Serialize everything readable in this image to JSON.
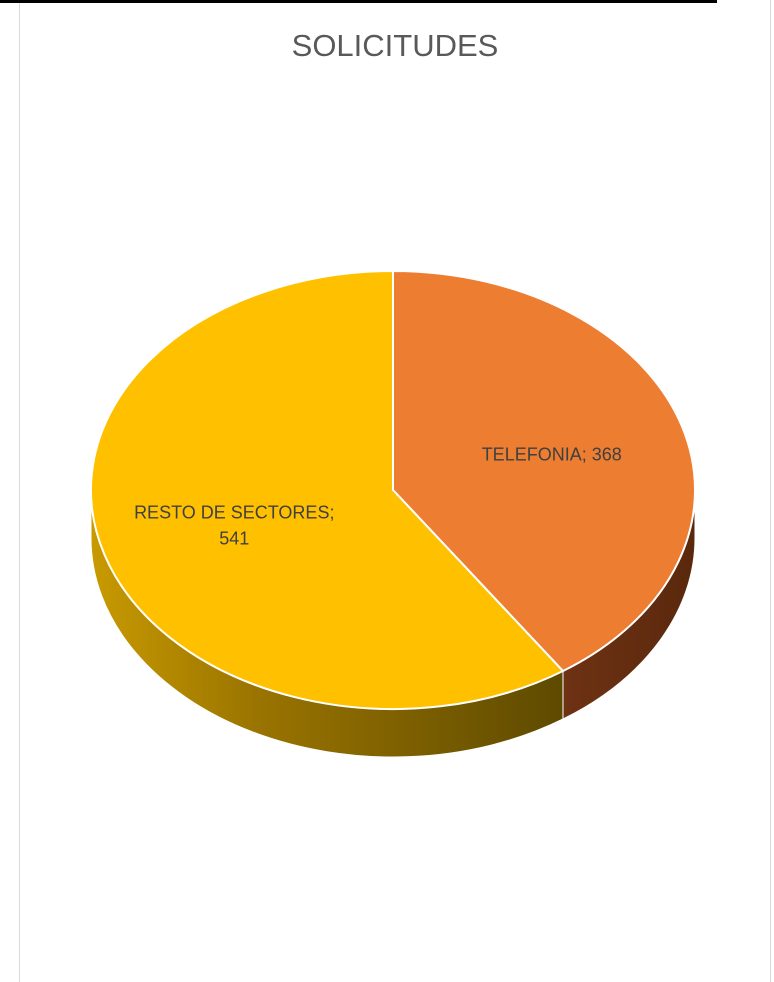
{
  "chart_data": {
    "type": "pie",
    "title": "SOLICITUDES",
    "three_d": true,
    "slices": [
      {
        "label": "TELEFONIA",
        "value": 368,
        "text_line1": "TELEFONIA; 368",
        "text_line2": "",
        "color": "#ED7D31",
        "side_dark": "#5C2A0E",
        "side_light": "#7A3A16"
      },
      {
        "label": "RESTO DE SECTORES",
        "value": 541,
        "text_line1": "RESTO DE SECTORES;",
        "text_line2": "541",
        "color": "#FFC000",
        "side_dark": "#5E4A00",
        "side_light": "#B08400"
      }
    ],
    "data_labels": "label; value",
    "legend": "none"
  }
}
